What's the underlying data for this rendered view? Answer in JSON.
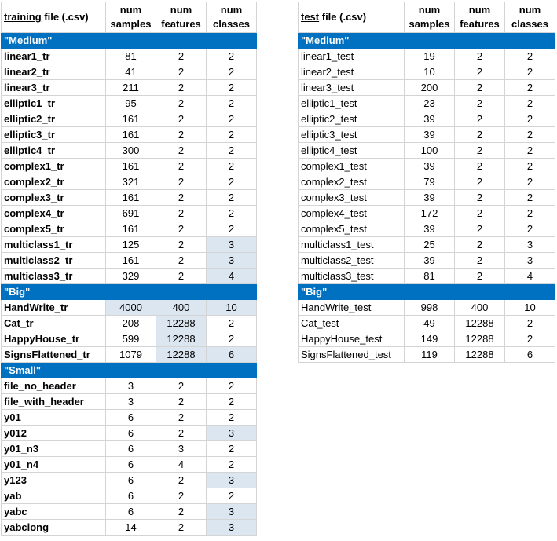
{
  "colors": {
    "section_bg": "#0070c0",
    "section_text": "#ffffff",
    "highlight": "#dce6f1",
    "grid": "#d4d4d4"
  },
  "training": {
    "headers": {
      "file_word": "training",
      "file_rest": " file (.csv)",
      "samples_1": "num",
      "samples_2": "samples",
      "features_1": "num",
      "features_2": "features",
      "classes_1": "num",
      "classes_2": "classes"
    },
    "sections": [
      {
        "title": "\"Medium\"",
        "rows": [
          {
            "name": "linear1_tr",
            "samples": "81",
            "features": "2",
            "classes": "2"
          },
          {
            "name": "linear2_tr",
            "samples": "41",
            "features": "2",
            "classes": "2"
          },
          {
            "name": "linear3_tr",
            "samples": "211",
            "features": "2",
            "classes": "2"
          },
          {
            "name": "elliptic1_tr",
            "samples": "95",
            "features": "2",
            "classes": "2"
          },
          {
            "name": "elliptic2_tr",
            "samples": "161",
            "features": "2",
            "classes": "2"
          },
          {
            "name": "elliptic3_tr",
            "samples": "161",
            "features": "2",
            "classes": "2"
          },
          {
            "name": "elliptic4_tr",
            "samples": "300",
            "features": "2",
            "classes": "2"
          },
          {
            "name": "complex1_tr",
            "samples": "161",
            "features": "2",
            "classes": "2"
          },
          {
            "name": "complex2_tr",
            "samples": "321",
            "features": "2",
            "classes": "2"
          },
          {
            "name": "complex3_tr",
            "samples": "161",
            "features": "2",
            "classes": "2"
          },
          {
            "name": "complex4_tr",
            "samples": "691",
            "features": "2",
            "classes": "2"
          },
          {
            "name": "complex5_tr",
            "samples": "161",
            "features": "2",
            "classes": "2"
          },
          {
            "name": "multiclass1_tr",
            "samples": "125",
            "features": "2",
            "classes": "3",
            "hl": [
              "classes"
            ]
          },
          {
            "name": "multiclass2_tr",
            "samples": "161",
            "features": "2",
            "classes": "3",
            "hl": [
              "classes"
            ]
          },
          {
            "name": "multiclass3_tr",
            "samples": "329",
            "features": "2",
            "classes": "4",
            "hl": [
              "classes"
            ]
          }
        ]
      },
      {
        "title": "\"Big\"",
        "rows": [
          {
            "name": "HandWrite_tr",
            "samples": "4000",
            "features": "400",
            "classes": "10",
            "hl": [
              "samples",
              "features",
              "classes"
            ]
          },
          {
            "name": "Cat_tr",
            "samples": "208",
            "features": "12288",
            "classes": "2",
            "hl": [
              "features"
            ]
          },
          {
            "name": "HappyHouse_tr",
            "samples": "599",
            "features": "12288",
            "classes": "2",
            "hl": [
              "features"
            ]
          },
          {
            "name": "SignsFlattened_tr",
            "samples": "1079",
            "features": "12288",
            "classes": "6",
            "hl": [
              "features",
              "classes"
            ]
          }
        ]
      },
      {
        "title": "\"Small\"",
        "rows": [
          {
            "name": "file_no_header",
            "samples": "3",
            "features": "2",
            "classes": "2"
          },
          {
            "name": "file_with_header",
            "samples": "3",
            "features": "2",
            "classes": "2"
          },
          {
            "name": "y01",
            "samples": "6",
            "features": "2",
            "classes": "2"
          },
          {
            "name": "y012",
            "samples": "6",
            "features": "2",
            "classes": "3",
            "hl": [
              "classes"
            ]
          },
          {
            "name": "y01_n3",
            "samples": "6",
            "features": "3",
            "classes": "2"
          },
          {
            "name": "y01_n4",
            "samples": "6",
            "features": "4",
            "classes": "2"
          },
          {
            "name": "y123",
            "samples": "6",
            "features": "2",
            "classes": "3",
            "hl": [
              "classes"
            ]
          },
          {
            "name": "yab",
            "samples": "6",
            "features": "2",
            "classes": "2"
          },
          {
            "name": "yabc",
            "samples": "6",
            "features": "2",
            "classes": "3",
            "hl": [
              "classes"
            ]
          },
          {
            "name": "yabclong",
            "samples": "14",
            "features": "2",
            "classes": "3",
            "hl": [
              "classes"
            ]
          }
        ]
      }
    ]
  },
  "test": {
    "headers": {
      "file_word": "test",
      "file_rest": " file (.csv)",
      "samples_1": "num",
      "samples_2": "samples",
      "features_1": "num",
      "features_2": "features",
      "classes_1": "num",
      "classes_2": "classes"
    },
    "sections": [
      {
        "title": "\"Medium\"",
        "rows": [
          {
            "name": "linear1_test",
            "samples": "19",
            "features": "2",
            "classes": "2"
          },
          {
            "name": "linear2_test",
            "samples": "10",
            "features": "2",
            "classes": "2"
          },
          {
            "name": "linear3_test",
            "samples": "200",
            "features": "2",
            "classes": "2"
          },
          {
            "name": "elliptic1_test",
            "samples": "23",
            "features": "2",
            "classes": "2"
          },
          {
            "name": "elliptic2_test",
            "samples": "39",
            "features": "2",
            "classes": "2"
          },
          {
            "name": "elliptic3_test",
            "samples": "39",
            "features": "2",
            "classes": "2"
          },
          {
            "name": "elliptic4_test",
            "samples": "100",
            "features": "2",
            "classes": "2"
          },
          {
            "name": "complex1_test",
            "samples": "39",
            "features": "2",
            "classes": "2"
          },
          {
            "name": "complex2_test",
            "samples": "79",
            "features": "2",
            "classes": "2"
          },
          {
            "name": "complex3_test",
            "samples": "39",
            "features": "2",
            "classes": "2"
          },
          {
            "name": "complex4_test",
            "samples": "172",
            "features": "2",
            "classes": "2"
          },
          {
            "name": "complex5_test",
            "samples": "39",
            "features": "2",
            "classes": "2"
          },
          {
            "name": "multiclass1_test",
            "samples": "25",
            "features": "2",
            "classes": "3"
          },
          {
            "name": "multiclass2_test",
            "samples": "39",
            "features": "2",
            "classes": "3"
          },
          {
            "name": "multiclass3_test",
            "samples": "81",
            "features": "2",
            "classes": "4"
          }
        ]
      },
      {
        "title": "\"Big\"",
        "rows": [
          {
            "name": "HandWrite_test",
            "samples": "998",
            "features": "400",
            "classes": "10"
          },
          {
            "name": "Cat_test",
            "samples": "49",
            "features": "12288",
            "classes": "2"
          },
          {
            "name": "HappyHouse_test",
            "samples": "149",
            "features": "12288",
            "classes": "2"
          },
          {
            "name": "SignsFlattened_test",
            "samples": "119",
            "features": "12288",
            "classes": "6"
          }
        ]
      }
    ]
  }
}
